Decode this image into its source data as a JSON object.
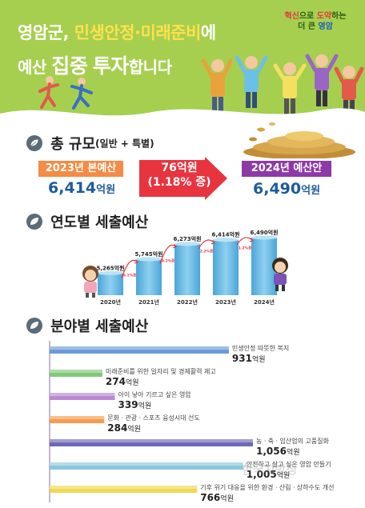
{
  "header": {
    "line1_pre": "영암군, ",
    "line1_hl": "민생안정·미래준비",
    "line1_post": "에",
    "line2_pre": "예산 ",
    "line2_big1": "집중",
    "line2_mid": " ",
    "line2_big2": "투자",
    "line2_post": "합니다",
    "badge_l1_a": "혁신",
    "badge_l1_b": "으로 ",
    "badge_l1_c": "도약",
    "badge_l1_d": "하는",
    "badge_l2_a": "더 큰 ",
    "badge_l2_b": "영암"
  },
  "total": {
    "title": "총 규모",
    "subtitle": "(일반 + 특별)",
    "prev_label": "2023년 본예산",
    "prev_value": "6,414",
    "next_label": "2024년 예산안",
    "next_value": "6,490",
    "unit": "억원",
    "diff_line1": "76억원",
    "diff_line2": "(1.18% 증)"
  },
  "yearly": {
    "title": "연도별 세출예산"
  },
  "fields_section": {
    "title": "분야별 세출예산"
  },
  "chart_data": [
    {
      "type": "bar",
      "categories": [
        "2020년",
        "2021년",
        "2022년",
        "2023년",
        "2024년"
      ],
      "values": [
        5265,
        5745,
        6273,
        6414,
        6490
      ],
      "value_labels": [
        "5,265억원",
        "5,745억원",
        "6,273억원",
        "6,414억원",
        "6,490억원"
      ],
      "growth_labels": [
        "9.1%증",
        "9.2%증",
        "2.2%증",
        "1.2%증"
      ],
      "colors": {
        "bar": "#62b8e2"
      }
    },
    {
      "type": "bar",
      "orientation": "horizontal",
      "categories": [
        "민생안정 따뜻한 복지",
        "미래준비를 위한 일자리 및 경제활력 제고",
        "아이 낳아 기르고 싶은 영암",
        "문화ㆍ관광ㆍ스포츠 융성시대 선도",
        "농ㆍ축ㆍ임산업의 고품질화",
        "안전하고 살고 싶은 영암 만들기",
        "기후 위기 대응을 위한 환경ㆍ산림ㆍ상하수도 개선"
      ],
      "values": [
        931,
        274,
        339,
        284,
        1056,
        1005,
        766
      ],
      "value_labels": [
        "931",
        "274",
        "339",
        "284",
        "1,056",
        "1,005",
        "766"
      ],
      "unit": "억원",
      "colors": [
        "#5b8fd6",
        "#72c469",
        "#b47ccc",
        "#f5923a",
        "#5d56b0",
        "#7ec2dc",
        "#f1d33f"
      ]
    }
  ]
}
